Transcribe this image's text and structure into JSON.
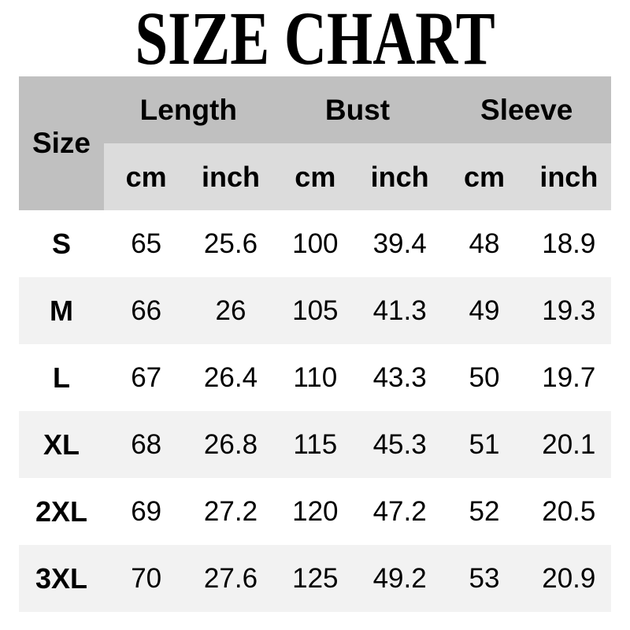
{
  "title": "SIZE CHART",
  "colors": {
    "header_bg": "#c0c0c0",
    "subheader_bg": "#dcdcdc",
    "row_bg": "#ffffff",
    "row_alt_bg": "#f2f2f2",
    "text": "#000000"
  },
  "table": {
    "size_header": "Size",
    "groups": [
      "Length",
      "Bust",
      "Sleeve"
    ],
    "units": [
      "cm",
      "inch",
      "cm",
      "inch",
      "cm",
      "inch"
    ],
    "rows": [
      {
        "size": "S",
        "values": [
          "65",
          "25.6",
          "100",
          "39.4",
          "48",
          "18.9"
        ]
      },
      {
        "size": "M",
        "values": [
          "66",
          "26",
          "105",
          "41.3",
          "49",
          "19.3"
        ]
      },
      {
        "size": "L",
        "values": [
          "67",
          "26.4",
          "110",
          "43.3",
          "50",
          "19.7"
        ]
      },
      {
        "size": "XL",
        "values": [
          "68",
          "26.8",
          "115",
          "45.3",
          "51",
          "20.1"
        ]
      },
      {
        "size": "2XL",
        "values": [
          "69",
          "27.2",
          "120",
          "47.2",
          "52",
          "20.5"
        ]
      },
      {
        "size": "3XL",
        "values": [
          "70",
          "27.6",
          "125",
          "49.2",
          "53",
          "20.9"
        ]
      }
    ]
  },
  "chart_data": {
    "type": "table",
    "title": "SIZE CHART",
    "column_groups": [
      {
        "label": "Length",
        "columns": [
          "cm",
          "inch"
        ]
      },
      {
        "label": "Bust",
        "columns": [
          "cm",
          "inch"
        ]
      },
      {
        "label": "Sleeve",
        "columns": [
          "cm",
          "inch"
        ]
      }
    ],
    "columns": [
      "Size",
      "Length (cm)",
      "Length (inch)",
      "Bust (cm)",
      "Bust (inch)",
      "Sleeve (cm)",
      "Sleeve (inch)"
    ],
    "rows": [
      [
        "S",
        65,
        25.6,
        100,
        39.4,
        48,
        18.9
      ],
      [
        "M",
        66,
        26,
        105,
        41.3,
        49,
        19.3
      ],
      [
        "L",
        67,
        26.4,
        110,
        43.3,
        50,
        19.7
      ],
      [
        "XL",
        68,
        26.8,
        115,
        45.3,
        51,
        20.1
      ],
      [
        "2XL",
        69,
        27.2,
        120,
        47.2,
        52,
        20.5
      ],
      [
        "3XL",
        70,
        27.6,
        125,
        49.2,
        53,
        20.9
      ]
    ]
  }
}
